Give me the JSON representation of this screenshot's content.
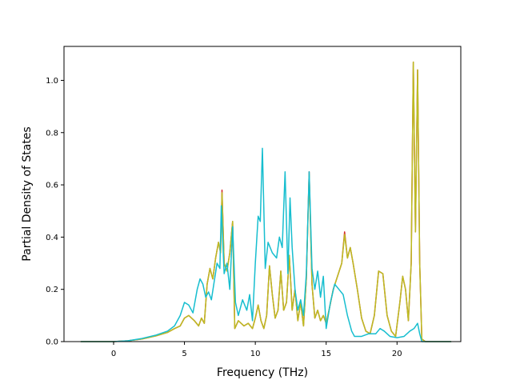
{
  "chart_data": {
    "type": "line",
    "title": "",
    "xlabel": "Frequency (THz)",
    "ylabel": "Partial Density of States",
    "xlim": [
      -3.5,
      24.5
    ],
    "ylim": [
      0.0,
      1.13
    ],
    "xticks": [
      0,
      5,
      10,
      15,
      20
    ],
    "yticks": [
      0.0,
      0.2,
      0.4,
      0.6,
      0.8,
      1.0
    ],
    "grid": false,
    "legend": "none",
    "series": [
      {
        "color": "#d62728",
        "points": [
          [
            -2.3,
            0.0
          ],
          [
            -1.0,
            0.0
          ],
          [
            0.0,
            0.0
          ],
          [
            1.0,
            0.003
          ],
          [
            2.0,
            0.01
          ],
          [
            3.0,
            0.022
          ],
          [
            3.8,
            0.035
          ],
          [
            4.3,
            0.05
          ],
          [
            4.7,
            0.06
          ],
          [
            5.0,
            0.09
          ],
          [
            5.3,
            0.1
          ],
          [
            5.7,
            0.08
          ],
          [
            6.0,
            0.06
          ],
          [
            6.2,
            0.09
          ],
          [
            6.4,
            0.07
          ],
          [
            6.6,
            0.22
          ],
          [
            6.8,
            0.28
          ],
          [
            7.0,
            0.24
          ],
          [
            7.2,
            0.32
          ],
          [
            7.4,
            0.38
          ],
          [
            7.55,
            0.34
          ],
          [
            7.65,
            0.58
          ],
          [
            7.8,
            0.3
          ],
          [
            8.0,
            0.27
          ],
          [
            8.2,
            0.34
          ],
          [
            8.4,
            0.46
          ],
          [
            8.55,
            0.05
          ],
          [
            8.8,
            0.08
          ],
          [
            9.2,
            0.06
          ],
          [
            9.5,
            0.07
          ],
          [
            9.8,
            0.05
          ],
          [
            10.0,
            0.09
          ],
          [
            10.2,
            0.14
          ],
          [
            10.4,
            0.08
          ],
          [
            10.6,
            0.05
          ],
          [
            10.8,
            0.1
          ],
          [
            11.0,
            0.29
          ],
          [
            11.2,
            0.18
          ],
          [
            11.4,
            0.09
          ],
          [
            11.6,
            0.12
          ],
          [
            11.8,
            0.27
          ],
          [
            12.0,
            0.12
          ],
          [
            12.2,
            0.15
          ],
          [
            12.4,
            0.33
          ],
          [
            12.6,
            0.12
          ],
          [
            12.8,
            0.2
          ],
          [
            13.0,
            0.08
          ],
          [
            13.2,
            0.15
          ],
          [
            13.4,
            0.06
          ],
          [
            13.6,
            0.24
          ],
          [
            13.8,
            0.65
          ],
          [
            14.0,
            0.22
          ],
          [
            14.2,
            0.09
          ],
          [
            14.4,
            0.12
          ],
          [
            14.6,
            0.08
          ],
          [
            14.8,
            0.1
          ],
          [
            15.0,
            0.07
          ],
          [
            15.2,
            0.12
          ],
          [
            15.5,
            0.2
          ],
          [
            15.8,
            0.25
          ],
          [
            16.1,
            0.3
          ],
          [
            16.3,
            0.42
          ],
          [
            16.5,
            0.32
          ],
          [
            16.7,
            0.36
          ],
          [
            16.9,
            0.3
          ],
          [
            17.2,
            0.2
          ],
          [
            17.5,
            0.09
          ],
          [
            17.8,
            0.04
          ],
          [
            18.1,
            0.03
          ],
          [
            18.4,
            0.1
          ],
          [
            18.7,
            0.27
          ],
          [
            19.0,
            0.26
          ],
          [
            19.3,
            0.1
          ],
          [
            19.6,
            0.04
          ],
          [
            19.9,
            0.02
          ],
          [
            20.2,
            0.15
          ],
          [
            20.4,
            0.25
          ],
          [
            20.6,
            0.2
          ],
          [
            20.8,
            0.08
          ],
          [
            21.0,
            0.3
          ],
          [
            21.15,
            1.07
          ],
          [
            21.3,
            0.42
          ],
          [
            21.45,
            1.04
          ],
          [
            21.6,
            0.3
          ],
          [
            21.75,
            0.01
          ],
          [
            22.0,
            0.0
          ],
          [
            23.0,
            0.0
          ],
          [
            23.8,
            0.0
          ]
        ]
      },
      {
        "color": "#bcbd22",
        "points": [
          [
            -2.3,
            0.0
          ],
          [
            -1.0,
            0.0
          ],
          [
            0.0,
            0.0
          ],
          [
            1.0,
            0.003
          ],
          [
            2.0,
            0.01
          ],
          [
            3.0,
            0.022
          ],
          [
            3.8,
            0.035
          ],
          [
            4.3,
            0.05
          ],
          [
            4.7,
            0.06
          ],
          [
            5.0,
            0.09
          ],
          [
            5.3,
            0.1
          ],
          [
            5.7,
            0.08
          ],
          [
            6.0,
            0.06
          ],
          [
            6.2,
            0.09
          ],
          [
            6.4,
            0.07
          ],
          [
            6.6,
            0.22
          ],
          [
            6.8,
            0.28
          ],
          [
            7.0,
            0.24
          ],
          [
            7.2,
            0.32
          ],
          [
            7.4,
            0.38
          ],
          [
            7.55,
            0.34
          ],
          [
            7.65,
            0.57
          ],
          [
            7.8,
            0.3
          ],
          [
            8.0,
            0.27
          ],
          [
            8.2,
            0.34
          ],
          [
            8.4,
            0.46
          ],
          [
            8.55,
            0.05
          ],
          [
            8.8,
            0.08
          ],
          [
            9.2,
            0.06
          ],
          [
            9.5,
            0.07
          ],
          [
            9.8,
            0.05
          ],
          [
            10.0,
            0.09
          ],
          [
            10.2,
            0.14
          ],
          [
            10.4,
            0.08
          ],
          [
            10.6,
            0.05
          ],
          [
            10.8,
            0.1
          ],
          [
            11.0,
            0.29
          ],
          [
            11.2,
            0.18
          ],
          [
            11.4,
            0.09
          ],
          [
            11.6,
            0.12
          ],
          [
            11.8,
            0.27
          ],
          [
            12.0,
            0.12
          ],
          [
            12.2,
            0.15
          ],
          [
            12.4,
            0.33
          ],
          [
            12.6,
            0.12
          ],
          [
            12.8,
            0.2
          ],
          [
            13.0,
            0.08
          ],
          [
            13.2,
            0.15
          ],
          [
            13.4,
            0.06
          ],
          [
            13.6,
            0.24
          ],
          [
            13.8,
            0.64
          ],
          [
            14.0,
            0.22
          ],
          [
            14.2,
            0.09
          ],
          [
            14.4,
            0.12
          ],
          [
            14.6,
            0.08
          ],
          [
            14.8,
            0.1
          ],
          [
            15.0,
            0.07
          ],
          [
            15.2,
            0.12
          ],
          [
            15.5,
            0.2
          ],
          [
            15.8,
            0.25
          ],
          [
            16.1,
            0.3
          ],
          [
            16.3,
            0.41
          ],
          [
            16.5,
            0.32
          ],
          [
            16.7,
            0.36
          ],
          [
            16.9,
            0.3
          ],
          [
            17.2,
            0.2
          ],
          [
            17.5,
            0.09
          ],
          [
            17.8,
            0.04
          ],
          [
            18.1,
            0.03
          ],
          [
            18.4,
            0.1
          ],
          [
            18.7,
            0.27
          ],
          [
            19.0,
            0.26
          ],
          [
            19.3,
            0.1
          ],
          [
            19.6,
            0.04
          ],
          [
            19.9,
            0.02
          ],
          [
            20.2,
            0.15
          ],
          [
            20.4,
            0.25
          ],
          [
            20.6,
            0.2
          ],
          [
            20.8,
            0.08
          ],
          [
            21.0,
            0.3
          ],
          [
            21.15,
            1.07
          ],
          [
            21.3,
            0.42
          ],
          [
            21.45,
            1.04
          ],
          [
            21.6,
            0.3
          ],
          [
            21.75,
            0.01
          ],
          [
            22.0,
            0.0
          ],
          [
            23.0,
            0.0
          ],
          [
            23.8,
            0.0
          ]
        ]
      },
      {
        "color": "#17becf",
        "points": [
          [
            -2.3,
            0.0
          ],
          [
            -1.0,
            0.0
          ],
          [
            0.0,
            0.0
          ],
          [
            1.0,
            0.003
          ],
          [
            2.0,
            0.012
          ],
          [
            3.0,
            0.025
          ],
          [
            3.8,
            0.04
          ],
          [
            4.3,
            0.06
          ],
          [
            4.7,
            0.1
          ],
          [
            5.0,
            0.15
          ],
          [
            5.3,
            0.14
          ],
          [
            5.6,
            0.11
          ],
          [
            5.9,
            0.2
          ],
          [
            6.1,
            0.24
          ],
          [
            6.3,
            0.22
          ],
          [
            6.5,
            0.17
          ],
          [
            6.7,
            0.19
          ],
          [
            6.9,
            0.16
          ],
          [
            7.1,
            0.23
          ],
          [
            7.3,
            0.3
          ],
          [
            7.5,
            0.28
          ],
          [
            7.6,
            0.52
          ],
          [
            7.8,
            0.26
          ],
          [
            8.0,
            0.3
          ],
          [
            8.2,
            0.2
          ],
          [
            8.4,
            0.44
          ],
          [
            8.6,
            0.15
          ],
          [
            8.8,
            0.1
          ],
          [
            9.1,
            0.16
          ],
          [
            9.4,
            0.12
          ],
          [
            9.6,
            0.18
          ],
          [
            9.8,
            0.08
          ],
          [
            10.0,
            0.3
          ],
          [
            10.2,
            0.48
          ],
          [
            10.35,
            0.46
          ],
          [
            10.5,
            0.74
          ],
          [
            10.7,
            0.28
          ],
          [
            10.9,
            0.38
          ],
          [
            11.2,
            0.34
          ],
          [
            11.5,
            0.32
          ],
          [
            11.7,
            0.4
          ],
          [
            11.9,
            0.36
          ],
          [
            12.1,
            0.65
          ],
          [
            12.3,
            0.26
          ],
          [
            12.45,
            0.55
          ],
          [
            12.6,
            0.36
          ],
          [
            12.8,
            0.2
          ],
          [
            13.0,
            0.12
          ],
          [
            13.2,
            0.16
          ],
          [
            13.4,
            0.1
          ],
          [
            13.6,
            0.26
          ],
          [
            13.8,
            0.65
          ],
          [
            14.0,
            0.28
          ],
          [
            14.2,
            0.2
          ],
          [
            14.4,
            0.27
          ],
          [
            14.6,
            0.17
          ],
          [
            14.8,
            0.25
          ],
          [
            15.0,
            0.05
          ],
          [
            15.3,
            0.15
          ],
          [
            15.6,
            0.22
          ],
          [
            15.9,
            0.2
          ],
          [
            16.2,
            0.18
          ],
          [
            16.5,
            0.1
          ],
          [
            16.8,
            0.04
          ],
          [
            17.0,
            0.02
          ],
          [
            17.5,
            0.02
          ],
          [
            18.0,
            0.03
          ],
          [
            18.5,
            0.03
          ],
          [
            18.8,
            0.05
          ],
          [
            19.1,
            0.04
          ],
          [
            19.5,
            0.02
          ],
          [
            20.0,
            0.015
          ],
          [
            20.5,
            0.02
          ],
          [
            20.9,
            0.04
          ],
          [
            21.2,
            0.05
          ],
          [
            21.45,
            0.07
          ],
          [
            21.6,
            0.03
          ],
          [
            21.75,
            0.0
          ],
          [
            22.0,
            0.0
          ],
          [
            23.0,
            0.0
          ],
          [
            23.8,
            0.0
          ]
        ]
      }
    ]
  }
}
